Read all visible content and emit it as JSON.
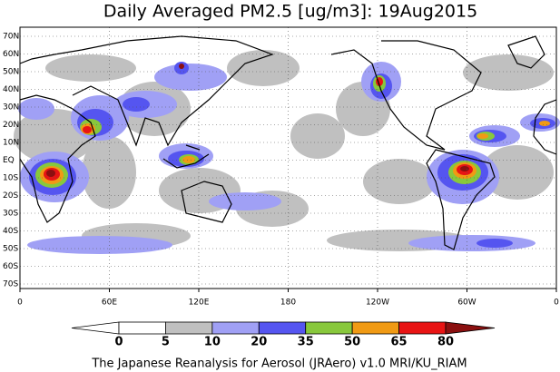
{
  "title": "Daily Averaged PM2.5 [ug/m3]: 19Aug2015",
  "map": {
    "lat_labels": [
      "70N",
      "60N",
      "50N",
      "40N",
      "30N",
      "20N",
      "10N",
      "EQ",
      "10S",
      "20S",
      "30S",
      "40S",
      "50S",
      "60S",
      "70S"
    ],
    "lon_labels": [
      "0",
      "60E",
      "120E",
      "180",
      "120W",
      "60W",
      "0"
    ]
  },
  "colorbar": {
    "levels": [
      0,
      5,
      10,
      20,
      35,
      50,
      65,
      80
    ],
    "colors": [
      "#ffffff",
      "#ffffff",
      "#c0c0c0",
      "#a0a0f5",
      "#5555f0",
      "#88c83c",
      "#f09a14",
      "#e81414",
      "#8b1010"
    ]
  },
  "footer": "The Japanese Reanalysis for Aerosol (JRAero) v1.0 MRI/KU_RIAM"
}
